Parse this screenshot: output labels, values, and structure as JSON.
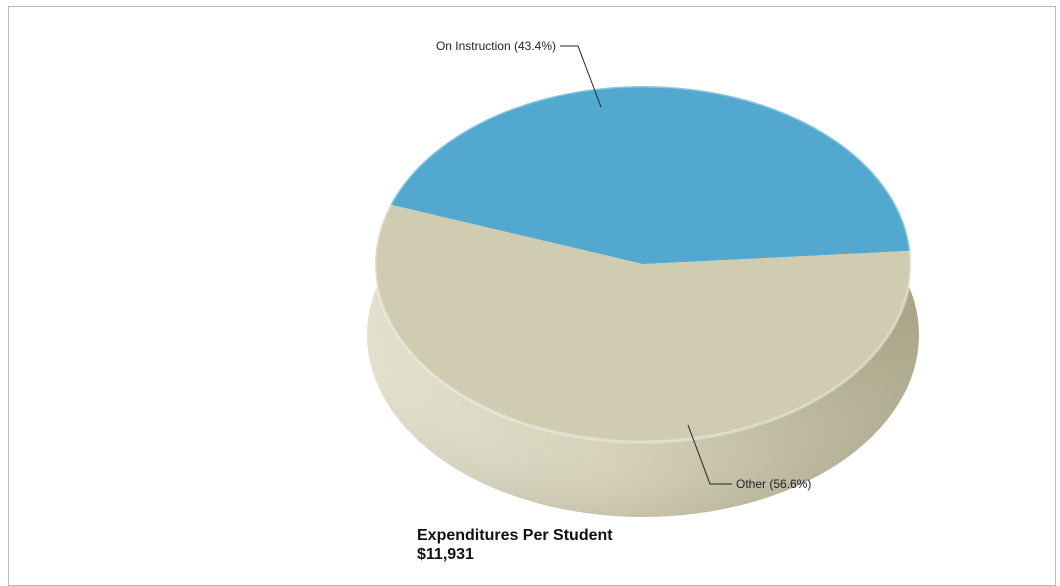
{
  "chart_data": {
    "type": "pie",
    "title": "Expenditures Per Student",
    "subtitle": "$11,931",
    "slices": [
      {
        "label": "On Instruction (43.4%)",
        "value": 43.4,
        "color": "#52a8cf"
      },
      {
        "label": "Other (56.6%)",
        "value": 56.6,
        "color": "#d0ccb2"
      }
    ]
  }
}
